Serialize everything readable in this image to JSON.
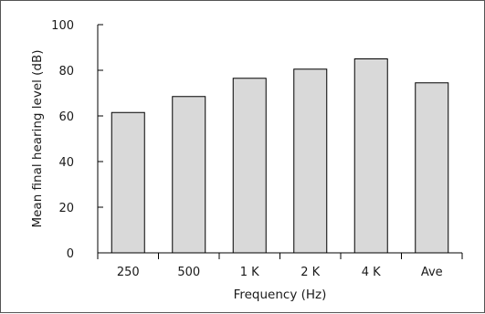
{
  "chart_data": {
    "type": "bar",
    "categories": [
      "250",
      "500",
      "1 K",
      "2 K",
      "4 K",
      "Ave"
    ],
    "values": [
      61.5,
      68.5,
      76.5,
      80.5,
      85,
      74.5
    ],
    "xlabel": "Frequency (Hz)",
    "ylabel": "Mean final hearing level (dB)",
    "ylim": [
      0,
      100
    ],
    "yticks": [
      0,
      20,
      40,
      60,
      80,
      100
    ],
    "grid": false,
    "legend": "none",
    "bar_color": "#d9d9d9",
    "bar_edge_color": "#000000",
    "axis_color": "#000000"
  }
}
